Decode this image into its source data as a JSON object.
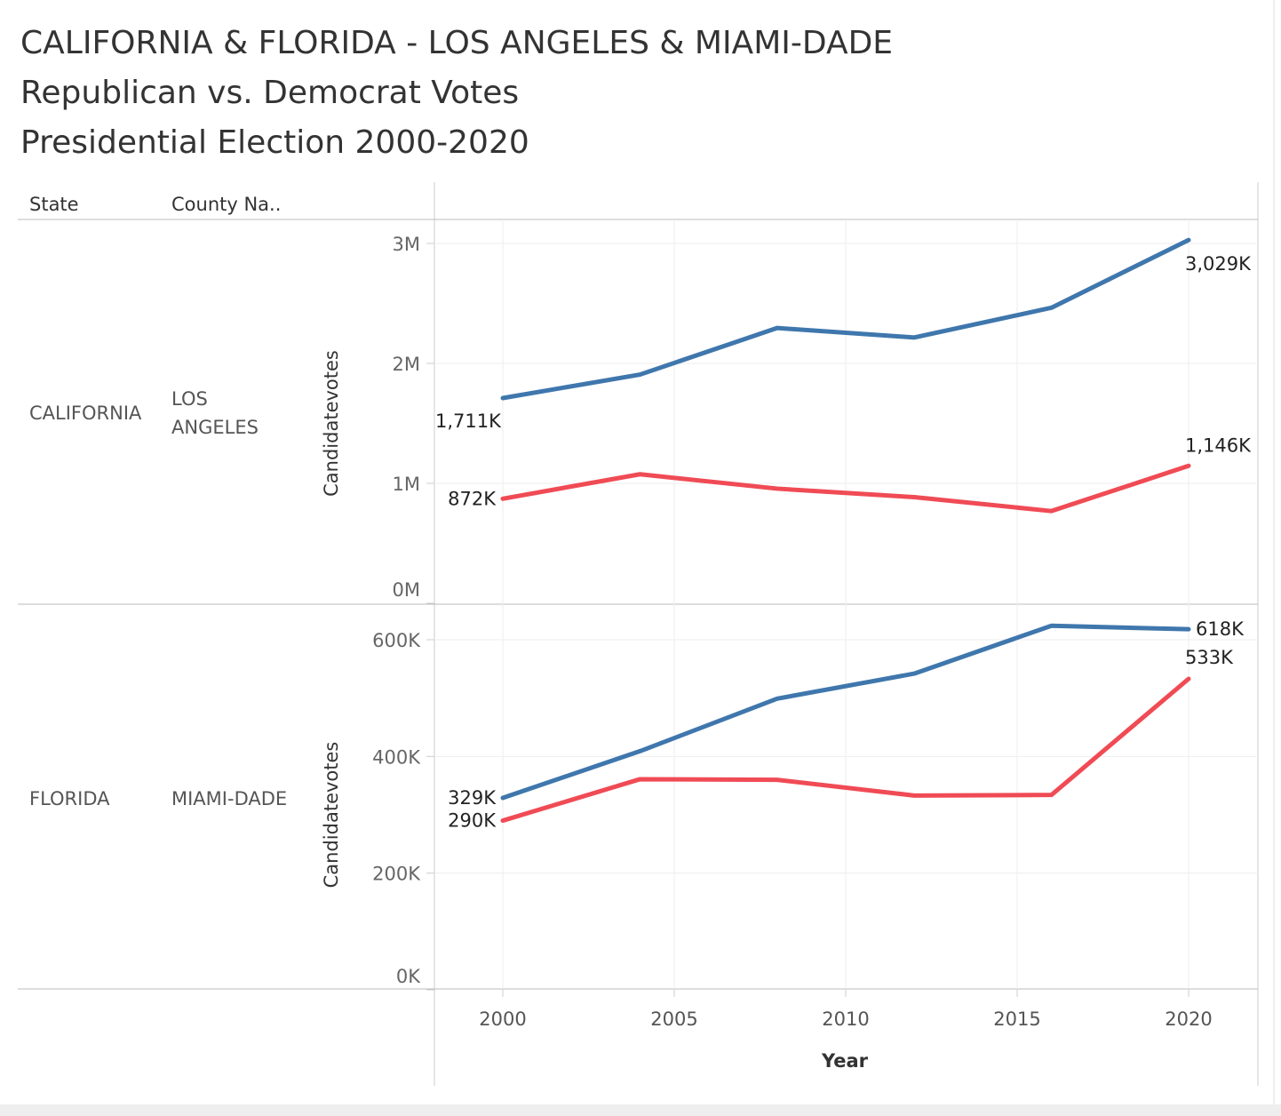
{
  "chart_data": {
    "type": "line",
    "title_lines": [
      "CALIFORNIA & FLORIDA - LOS ANGELES & MIAMI-DADE",
      "Republican vs. Democrat Votes",
      "Presidential Election 2000-2020"
    ],
    "row_headers": [
      "State",
      "County Na.."
    ],
    "xlabel": "Year",
    "x_ticks": [
      "2000",
      "2005",
      "2010",
      "2015",
      "2020"
    ],
    "xlim": [
      1998,
      2022
    ],
    "x": [
      2000,
      2004,
      2008,
      2012,
      2016,
      2020
    ],
    "colors": {
      "Democrat": "#3f77ad",
      "Republican": "#f04b55"
    },
    "panels": [
      {
        "state": "CALIFORNIA",
        "county": "LOS ANGELES",
        "ylabel": "Candidatevotes",
        "ylim": [
          0,
          3000000
        ],
        "y_ticks": [
          {
            "v": 3000000,
            "t": "3M"
          },
          {
            "v": 2000000,
            "t": "2M"
          },
          {
            "v": 1000000,
            "t": "1M"
          },
          {
            "v": 0,
            "t": "0M"
          }
        ],
        "series": [
          {
            "name": "Democrat",
            "values": [
              1711000,
              1907000,
              2295000,
              2216000,
              2464000,
              3029000
            ],
            "labels": [
              "1,711K",
              "3,029K"
            ]
          },
          {
            "name": "Republican",
            "values": [
              872000,
              1076000,
              956000,
              885000,
              769000,
              1146000
            ],
            "labels": [
              "872K",
              "1,146K"
            ]
          }
        ]
      },
      {
        "state": "FLORIDA",
        "county": "MIAMI-DADE",
        "ylabel": "Candidatevotes",
        "ylim": [
          0,
          600000
        ],
        "y_ticks": [
          {
            "v": 600000,
            "t": "600K"
          },
          {
            "v": 400000,
            "t": "400K"
          },
          {
            "v": 200000,
            "t": "200K"
          },
          {
            "v": 0,
            "t": "0K"
          }
        ],
        "series": [
          {
            "name": "Democrat",
            "values": [
              329000,
              409000,
              499000,
              542000,
              624000,
              618000
            ],
            "labels": [
              "329K",
              "618K"
            ]
          },
          {
            "name": "Republican",
            "values": [
              290000,
              361000,
              360000,
              333000,
              334000,
              533000
            ],
            "labels": [
              "290K",
              "533K"
            ]
          }
        ]
      }
    ]
  }
}
